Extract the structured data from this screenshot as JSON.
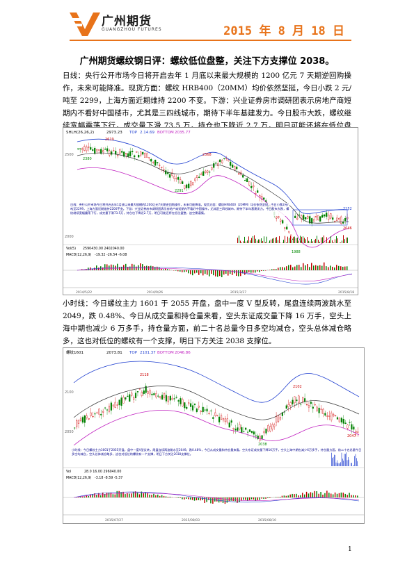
{
  "header": {
    "company_cn": "广州期货",
    "company_en": "GUANGZHOU FUTURES",
    "date": "2015 年 8 月 18 日"
  },
  "title": "广州期货螺纹钢日评：螺纹低位盘整，关注下方支撑位 2038。",
  "paragraph1": "日线：央行公开市场今日将开启去年 1 月底以来最大规模的 1200 亿元 7 天期逆回购操作，未来可能降准。现货方面：螺纹 HRB400（20MM）均价依然坚挺，今日小跌 2 元/吨至 2299，上海方面近期维持 2200 不变。下游：兴业证券房市调研团表示房地产商短期内不看好中国楼市，尤其是三四线城市，期待下半年基建发力。今日股市大跌，螺纹继续宽幅震荡下行，成交量下滑 73.5 万，持仓也下降近 2.7 万，明日可能还将在低位盘整，追空需谨慎。",
  "paragraph2": "小时线：今日螺纹主力 1601 于 2055 开盘，盘中一度 V 型反转，尾盘连续两波跳水至 2049，跌 0.48%、今日从成交量和持仓量来看，空头东证成交量下降 16 万手，空头上海中期也减少 6 万多手，持仓量方面，前二十名总量今日多空均减仓，空头总体减仓略多，这也对低位的螺纹有一个支撑，明日下方关注 2038 支撑位。",
  "chart1": {
    "header_left": "SHLH(26,26,2)",
    "header_mid": "2973.23",
    "top_label": "TOP",
    "top_value": "2.14.69",
    "bottom_label": "BOTTOM",
    "bottom_value": "2035.77",
    "labels": {
      "high": "2619",
      "low1": "2380",
      "low2": "2291",
      "peak2": "2368",
      "low3": "1988",
      "right1": "2152",
      "right2": "2046"
    },
    "axis_left": [
      "2500",
      "2000"
    ],
    "annotation": "日线：央行公开市场今日将开启去年1月底以来最大规模的1200亿元7天期逆回购操作，未来可能降准。现货方面：螺纹HRB400（20MM）均价依然坚挺，今日小跌2元/吨至2299，上海方面近期维持2200不变。下游：兴业证券房市调研团表示房地产商短期内不看好中国楼市，尤其是三四线城市，期待下半年基建发力。今日股市大跌，螺纹继续宽幅震荡下行，成交量下滑73.5万，持仓也下降近2.7万，明日可能还将在低位盘整，追空需谨慎。",
    "vol_label": "Vol(5)",
    "vol_values": "2590430.00  2402040.00",
    "macd_label": "MACD(12,26,9)",
    "macd_values": "-19.32  -26.54  -6.08",
    "dates": [
      "2014/5/22",
      "2014/9/26",
      "2015/3/27",
      "2015/8/18"
    ]
  },
  "chart2": {
    "header_left": "螺纹1601",
    "header_mid": "2073.81",
    "top_label": "TOP",
    "top_value": "2101.37",
    "bottom_label": "BOTTOM",
    "bottom_value": "2046.86",
    "labels": {
      "high1": "2118",
      "high2": "2102",
      "low1": "2038",
      "right": "2047"
    },
    "axis_left": [
      "2100",
      "2050"
    ],
    "annotation": "小时线：今日螺纹主力1601于2055开盘，盘中一度V型反转，尾盘连续两波跳水至2049，跌0.48%，今日从成交量和持仓量来看，空头东证成交量下降16万手，空头上海中期也减少6万多手，持仓量方面，前二十名总量今日多空均减仓，空头总体减仓略多，这也对低位的螺纹有一个支撑，明日下方关注2038支撑位。",
    "vol_label": "Vol",
    "macd_label": "MACD(12,26,9)",
    "macd_values": "-3.18  -8.59  -5.37",
    "vol_values": "28.0  16.00  296040.00",
    "dates": [
      "2015/07/27",
      "2015/08/03",
      "2015/08/10"
    ]
  },
  "page_number": "1"
}
